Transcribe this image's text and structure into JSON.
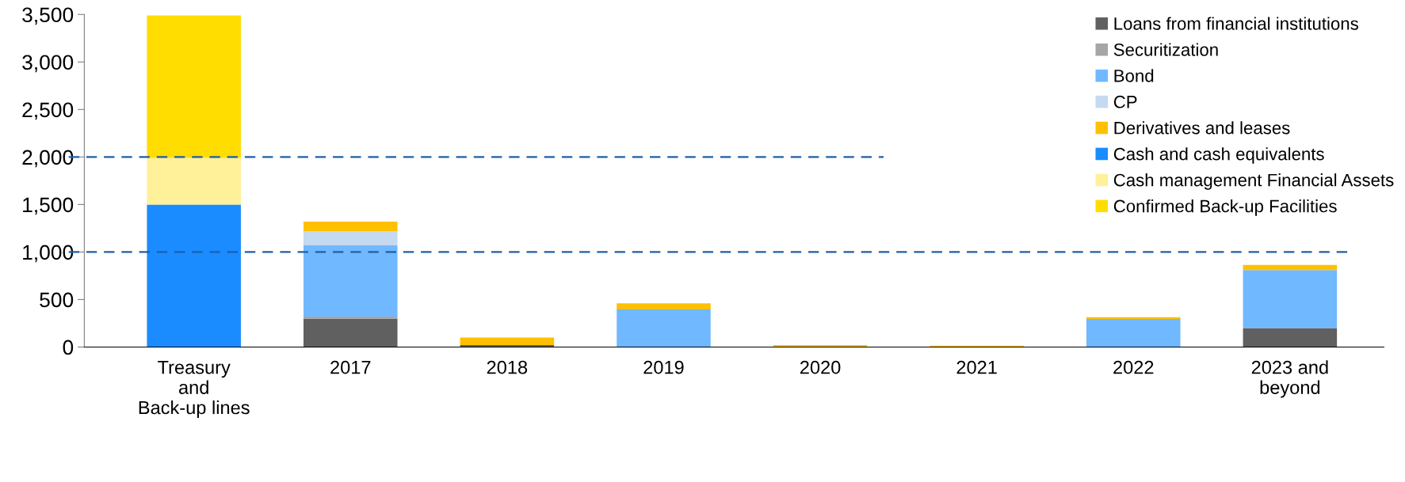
{
  "chart_data": {
    "type": "bar",
    "stacked": true,
    "categories": [
      "Treasury\nand\nBack-up lines",
      "2017",
      "2018",
      "2019",
      "2020",
      "2021",
      "2022",
      "2023 and\nbeyond"
    ],
    "series": [
      {
        "name": "Loans from financial institutions",
        "color": "#606060",
        "values": [
          0,
          300,
          20,
          0,
          0,
          0,
          0,
          200
        ]
      },
      {
        "name": "Securitization",
        "color": "#a6a6a6",
        "values": [
          0,
          20,
          0,
          0,
          0,
          0,
          0,
          0
        ]
      },
      {
        "name": "Bond",
        "color": "#70b8ff",
        "values": [
          0,
          750,
          0,
          395,
          0,
          0,
          295,
          610
        ]
      },
      {
        "name": "CP",
        "color": "#c5d9f1",
        "values": [
          0,
          150,
          0,
          0,
          0,
          0,
          0,
          0
        ]
      },
      {
        "name": "Derivatives and leases",
        "color": "#ffc000",
        "values": [
          0,
          100,
          80,
          65,
          20,
          15,
          20,
          55
        ]
      },
      {
        "name": "Cash and cash equivalents",
        "color": "#1a8cff",
        "values": [
          1500,
          0,
          0,
          0,
          0,
          0,
          0,
          0
        ]
      },
      {
        "name": "Cash management Financial Assets",
        "color": "#fff09a",
        "values": [
          490,
          0,
          0,
          0,
          0,
          0,
          0,
          0
        ]
      },
      {
        "name": "Confirmed Back-up Facilities",
        "color": "#ffdd00",
        "values": [
          1500,
          0,
          0,
          0,
          0,
          0,
          0,
          0
        ]
      }
    ],
    "ylim": [
      0,
      3500
    ],
    "yticks": [
      {
        "value": 0,
        "label": "0"
      },
      {
        "value": 500,
        "label": "500"
      },
      {
        "value": 1000,
        "label": "1,000"
      },
      {
        "value": 1500,
        "label": "1,500"
      },
      {
        "value": 2000,
        "label": "2,000"
      },
      {
        "value": 2500,
        "label": "2,500"
      },
      {
        "value": 3000,
        "label": "3,000"
      },
      {
        "value": 3500,
        "label": "3,500"
      }
    ],
    "ref_lines": [
      {
        "axis": "y",
        "value": 2000,
        "color": "#1f5fa8",
        "line_style": "dashed"
      },
      {
        "axis": "y",
        "value": 1000,
        "color": "#1f5fa8",
        "line_style": "dashed"
      }
    ],
    "grid": false,
    "legend": "top right"
  }
}
